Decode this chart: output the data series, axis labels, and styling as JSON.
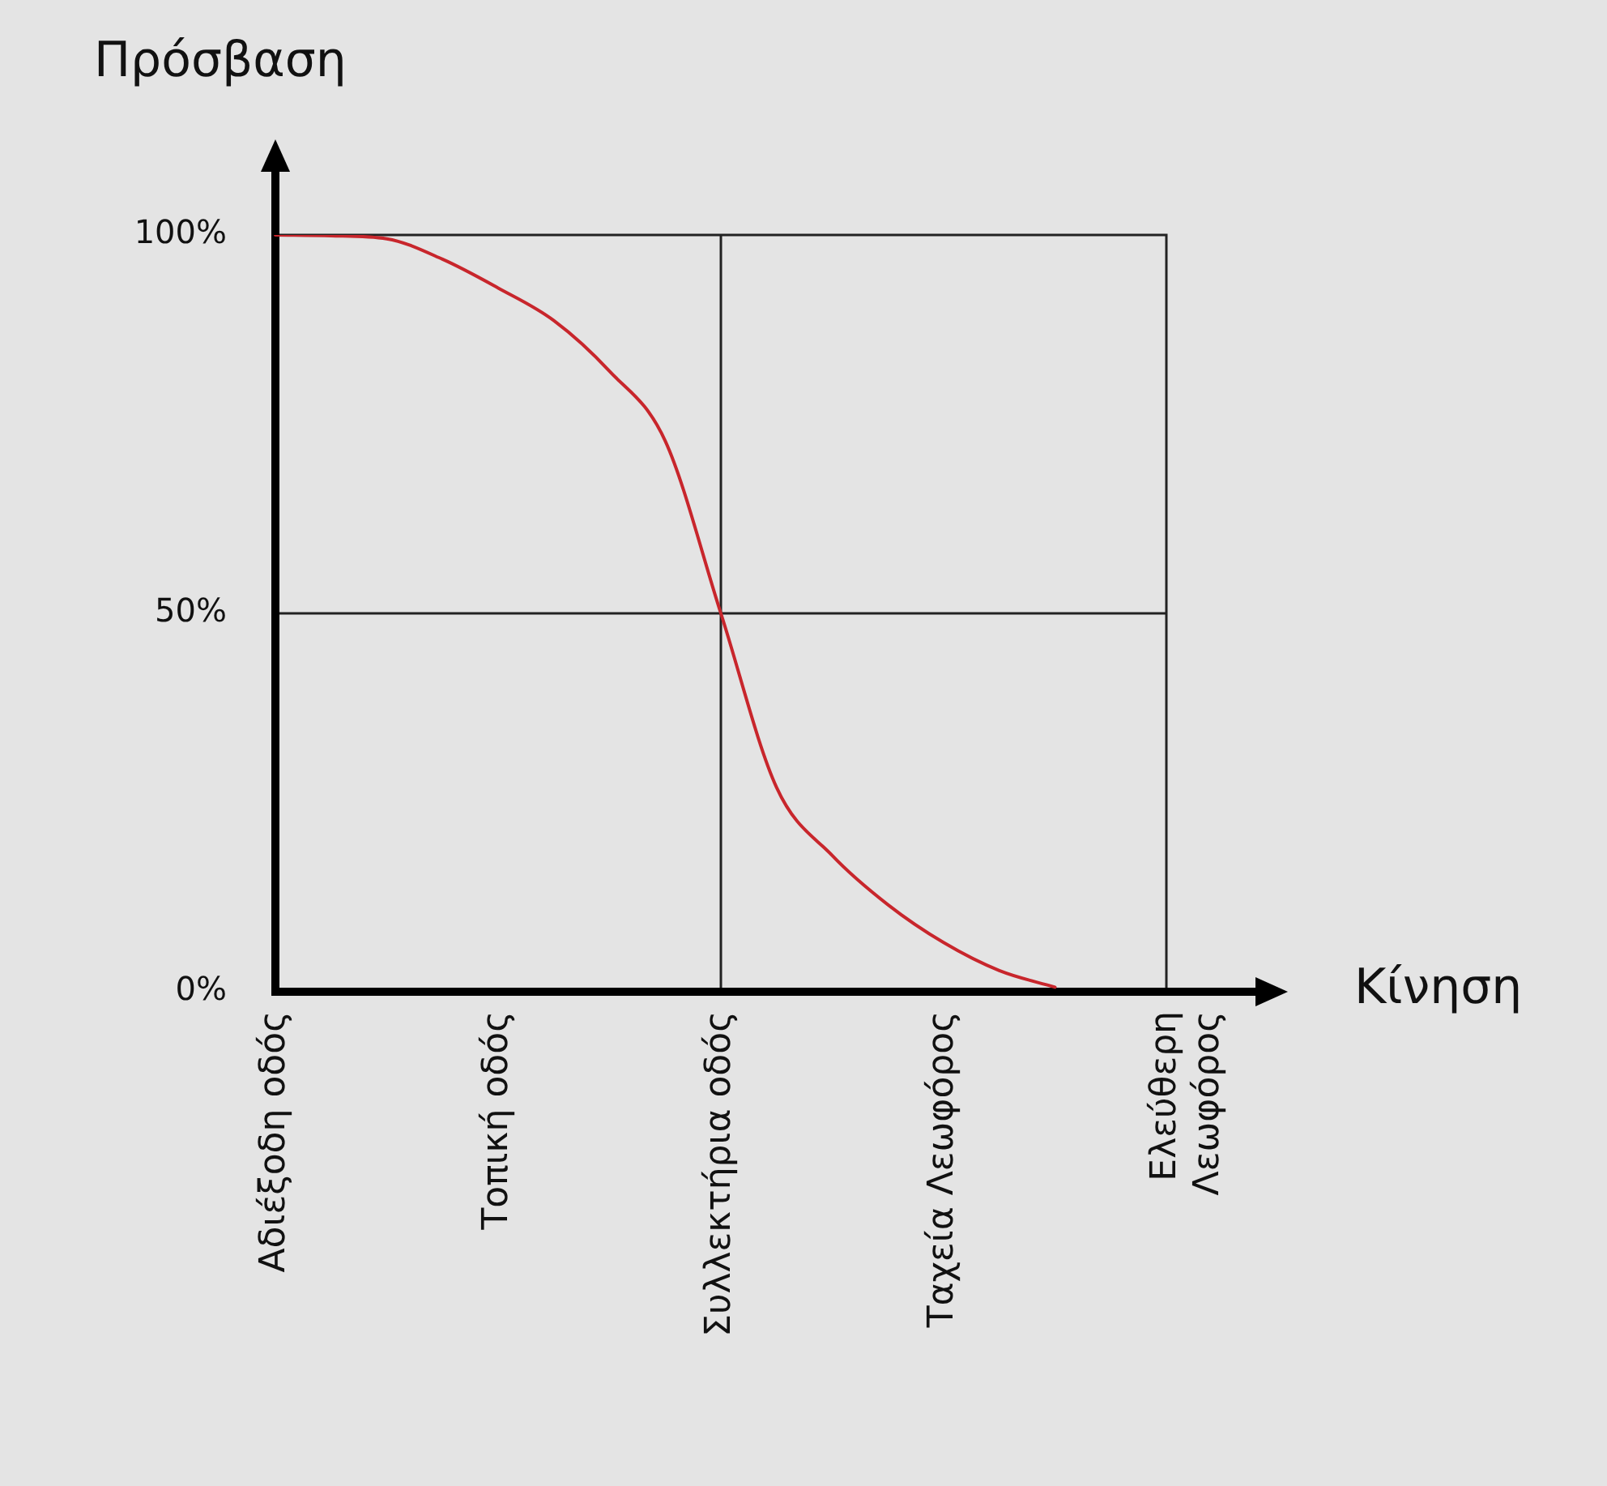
{
  "chart_data": {
    "type": "line",
    "xlabel": "Κίνηση",
    "ylabel": "Πρόσβαση",
    "ylim": [
      0,
      100
    ],
    "categories": [
      "Αδιέξοδη οδός",
      null,
      null,
      null,
      "Τοπική οδός",
      null,
      null,
      null,
      "Συλλεκτήρια οδός",
      null,
      null,
      null,
      "Ταχεία Λεωφόρος",
      null,
      null,
      null,
      "Ελεύθερη\nΛεωφόρος"
    ],
    "yticks": [
      {
        "value": 0,
        "label": "0%"
      },
      {
        "value": 50,
        "label": "50%"
      },
      {
        "value": 100,
        "label": "100%"
      }
    ],
    "series": [
      {
        "color": "#c8262c",
        "values": [
          100,
          99.9,
          99.5,
          96.8,
          93,
          88.7,
          82,
          72.8,
          50,
          27,
          18,
          11.5,
          6.5,
          2.8,
          0.6,
          null,
          null
        ]
      }
    ],
    "ref_lines": [
      {
        "axis": "x",
        "value": "Συλλεκτήρια οδός",
        "color": "#222222"
      },
      {
        "axis": "y",
        "value": 50,
        "color": "#222222"
      }
    ],
    "grid": false,
    "legend": false,
    "marker": "none",
    "line_style": "solid"
  }
}
